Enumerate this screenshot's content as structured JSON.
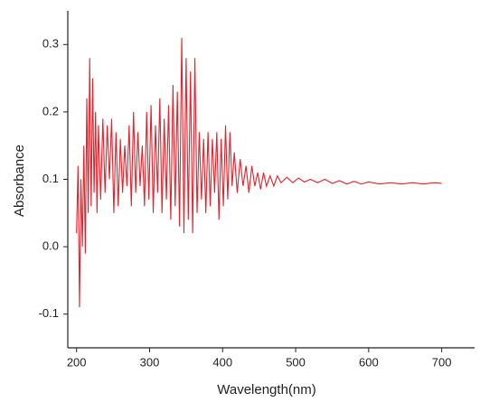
{
  "chart_data": {
    "type": "line",
    "x_label": "Wavelength(nm)",
    "y_label": "Absorbance",
    "xlim": [
      188,
      745
    ],
    "ylim": [
      -0.15,
      0.35
    ],
    "xticks": [
      200,
      300,
      400,
      500,
      600,
      700
    ],
    "yticks": [
      -0.1,
      {
        "value": 0,
        "label": "0.0"
      },
      0.1,
      0.2,
      0.3
    ],
    "x": [
      200,
      202,
      204,
      206,
      208,
      210,
      212,
      214,
      216,
      218,
      220,
      222,
      224,
      226,
      228,
      230,
      233,
      236,
      239,
      242,
      245,
      248,
      251,
      254,
      257,
      260,
      263,
      266,
      269,
      272,
      275,
      278,
      281,
      284,
      287,
      290,
      293,
      296,
      299,
      302,
      305,
      308,
      311,
      314,
      317,
      320,
      323,
      326,
      329,
      332,
      335,
      338,
      341,
      344,
      347,
      350,
      353,
      356,
      359,
      362,
      365,
      368,
      371,
      374,
      377,
      380,
      383,
      386,
      389,
      392,
      395,
      398,
      401,
      404,
      407,
      410,
      413,
      416,
      420,
      424,
      428,
      432,
      436,
      440,
      444,
      448,
      452,
      456,
      460,
      465,
      470,
      475,
      480,
      488,
      496,
      504,
      512,
      520,
      530,
      540,
      550,
      560,
      570,
      580,
      590,
      600,
      615,
      630,
      645,
      660,
      675,
      690,
      700
    ],
    "series": [
      {
        "color": "#e8202a",
        "values": [
          0.02,
          0.12,
          -0.09,
          0.1,
          0.0,
          0.15,
          -0.01,
          0.22,
          0.05,
          0.28,
          0.06,
          0.25,
          0.08,
          0.2,
          0.05,
          0.18,
          0.07,
          0.19,
          0.08,
          0.18,
          0.1,
          0.19,
          0.05,
          0.17,
          0.06,
          0.16,
          0.08,
          0.15,
          0.09,
          0.18,
          0.06,
          0.2,
          0.08,
          0.17,
          0.09,
          0.15,
          0.06,
          0.2,
          0.07,
          0.21,
          0.05,
          0.18,
          0.08,
          0.22,
          0.05,
          0.19,
          0.07,
          0.21,
          0.04,
          0.24,
          0.06,
          0.23,
          0.03,
          0.31,
          0.02,
          0.28,
          0.04,
          0.26,
          0.02,
          0.28,
          0.05,
          0.17,
          0.07,
          0.16,
          0.05,
          0.17,
          0.06,
          0.16,
          0.08,
          0.17,
          0.04,
          0.16,
          0.06,
          0.18,
          0.07,
          0.17,
          0.09,
          0.14,
          0.08,
          0.13,
          0.09,
          0.12,
          0.08,
          0.12,
          0.09,
          0.11,
          0.085,
          0.11,
          0.09,
          0.105,
          0.09,
          0.105,
          0.095,
          0.103,
          0.095,
          0.102,
          0.096,
          0.1,
          0.095,
          0.1,
          0.094,
          0.098,
          0.093,
          0.097,
          0.093,
          0.096,
          0.093,
          0.095,
          0.093,
          0.095,
          0.093,
          0.095,
          0.094
        ]
      }
    ]
  }
}
